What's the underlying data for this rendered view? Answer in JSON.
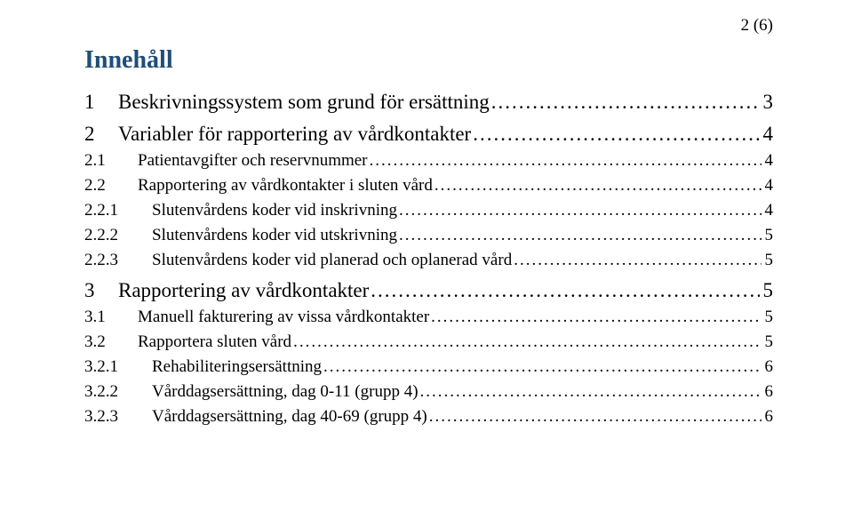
{
  "pageNumber": "2 (6)",
  "heading": "Innehåll",
  "leaderDots": "......................................................................................................................................................................................................",
  "toc": [
    {
      "level": 1,
      "num": "1",
      "title": "Beskrivningssystem som grund för ersättning",
      "page": "3"
    },
    {
      "level": 1,
      "num": "2",
      "title": "Variabler för rapportering av vårdkontakter",
      "page": "4"
    },
    {
      "level": 2,
      "num": "2.1",
      "title": "Patientavgifter och reservnummer",
      "page": "4"
    },
    {
      "level": 2,
      "num": "2.2",
      "title": "Rapportering av vårdkontakter i sluten vård",
      "page": "4"
    },
    {
      "level": 3,
      "num": "2.2.1",
      "title": "Slutenvårdens koder vid inskrivning",
      "page": "4"
    },
    {
      "level": 3,
      "num": "2.2.2",
      "title": "Slutenvårdens koder vid utskrivning",
      "page": "5"
    },
    {
      "level": 3,
      "num": "2.2.3",
      "title": "Slutenvårdens koder vid planerad och oplanerad vård",
      "page": "5"
    },
    {
      "level": 1,
      "num": "3",
      "title": "Rapportering av vårdkontakter",
      "page": "5"
    },
    {
      "level": 2,
      "num": "3.1",
      "title": "Manuell fakturering av vissa vårdkontakter",
      "page": "5"
    },
    {
      "level": 2,
      "num": "3.2",
      "title": "Rapportera sluten vård",
      "page": "5"
    },
    {
      "level": 3,
      "num": "3.2.1",
      "title": "Rehabiliteringsersättning",
      "page": "6"
    },
    {
      "level": 3,
      "num": "3.2.2",
      "title": "Vårddagsersättning, dag 0-11 (grupp 4)",
      "page": "6"
    },
    {
      "level": 3,
      "num": "3.2.3",
      "title": "Vårddagsersättning, dag 40-69 (grupp 4)",
      "page": "6"
    }
  ]
}
